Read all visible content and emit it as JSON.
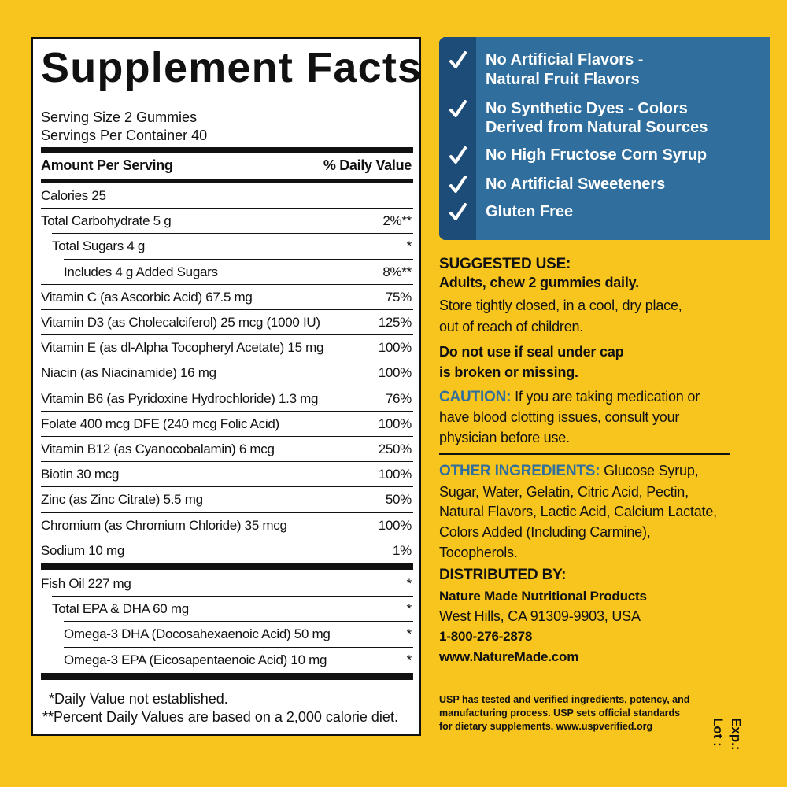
{
  "facts": {
    "title": "Supplement Facts",
    "serving_size": "Serving Size 2 Gummies",
    "servings_per_container": "Servings Per Container 40",
    "header": [
      "Amount Per Serving",
      "% Daily Value"
    ],
    "rows": [
      [
        "Calories 25"
      ],
      [
        "Total Carbohydrate 5 g",
        "2%**"
      ],
      [
        "Total Sugars 4 g",
        "*"
      ],
      [
        "Includes 4 g Added Sugars",
        "8%**"
      ],
      [
        "Vitamin C (as Ascorbic Acid) 67.5 mg",
        "75%"
      ],
      [
        "Vitamin D3 (as Cholecalciferol) 25 mcg (1000 IU)",
        "125%"
      ],
      [
        "Vitamin E (as dl-Alpha Tocopheryl Acetate) 15 mg",
        "100%"
      ],
      [
        "Niacin (as Niacinamide) 16 mg",
        "100%"
      ],
      [
        "Vitamin B6 (as Pyridoxine Hydrochloride) 1.3 mg",
        "76%"
      ],
      [
        "Folate 400 mcg DFE (240 mcg Folic Acid)",
        "100%"
      ],
      [
        "Vitamin B12 (as Cyanocobalamin) 6 mcg",
        "250%"
      ],
      [
        "Biotin 30 mcg",
        "100%"
      ],
      [
        "Zinc (as Zinc Citrate) 5.5 mg",
        "50%"
      ],
      [
        "Chromium (as Chromium Chloride) 35 mcg",
        "100%"
      ],
      [
        "Sodium 10 mg",
        "1%"
      ]
    ],
    "extra_rows": [
      [
        "Fish Oil 227 mg",
        "*"
      ],
      [
        "Total EPA & DHA 60 mg",
        "*"
      ],
      [
        "Omega-3 DHA (Docosahexaenoic Acid) 50 mg",
        "*"
      ],
      [
        "Omega-3 EPA (Eicosapentaenoic Acid) 10 mg",
        "*"
      ]
    ],
    "footnotes": [
      "*Daily Value not established.",
      "**Percent Daily Values are based on a 2,000 calorie diet."
    ]
  },
  "claims": [
    [
      "No Artificial Flavors -",
      "Natural Fruit Flavors"
    ],
    [
      "No Synthetic Dyes - Colors",
      "Derived from Natural Sources"
    ],
    [
      "No High Fructose Corn Syrup"
    ],
    [
      "No Artificial Sweeteners"
    ],
    [
      "Gluten Free"
    ]
  ],
  "suggested_use": {
    "label": "SUGGESTED USE:",
    "directions": "Adults, chew 2 gummies daily.",
    "storage": [
      "Store tightly closed, in a cool, dry place,",
      "out of reach of children."
    ],
    "warning": [
      "Do not use if seal under cap",
      "is broken or missing."
    ]
  },
  "caution": {
    "label": "CAUTION:",
    "lines": [
      "If you are taking medication or",
      "have blood clotting issues, consult your",
      "physician before use."
    ]
  },
  "other_ingredients": {
    "label": "OTHER INGREDIENTS:",
    "lines": [
      "Glucose Syrup,",
      "Sugar, Water, Gelatin, Citric Acid, Pectin,",
      "Natural Flavors, Lactic Acid, Calcium Lactate,",
      "Colors Added (Including Carmine),",
      "Tocopherols."
    ]
  },
  "distributor": {
    "label": "DISTRIBUTED BY:",
    "name": "Nature Made Nutritional Products",
    "address": "West Hills, CA 91309-9903, USA",
    "phone": "1-800-276-2878",
    "website": "www.NatureMade.com"
  },
  "usp": [
    "USP has tested and verified ingredients, potency, and",
    "manufacturing process. USP sets official standards",
    "for dietary supplements. www.uspverified.org"
  ],
  "lot": "Lot :",
  "exp": "Exp.:"
}
